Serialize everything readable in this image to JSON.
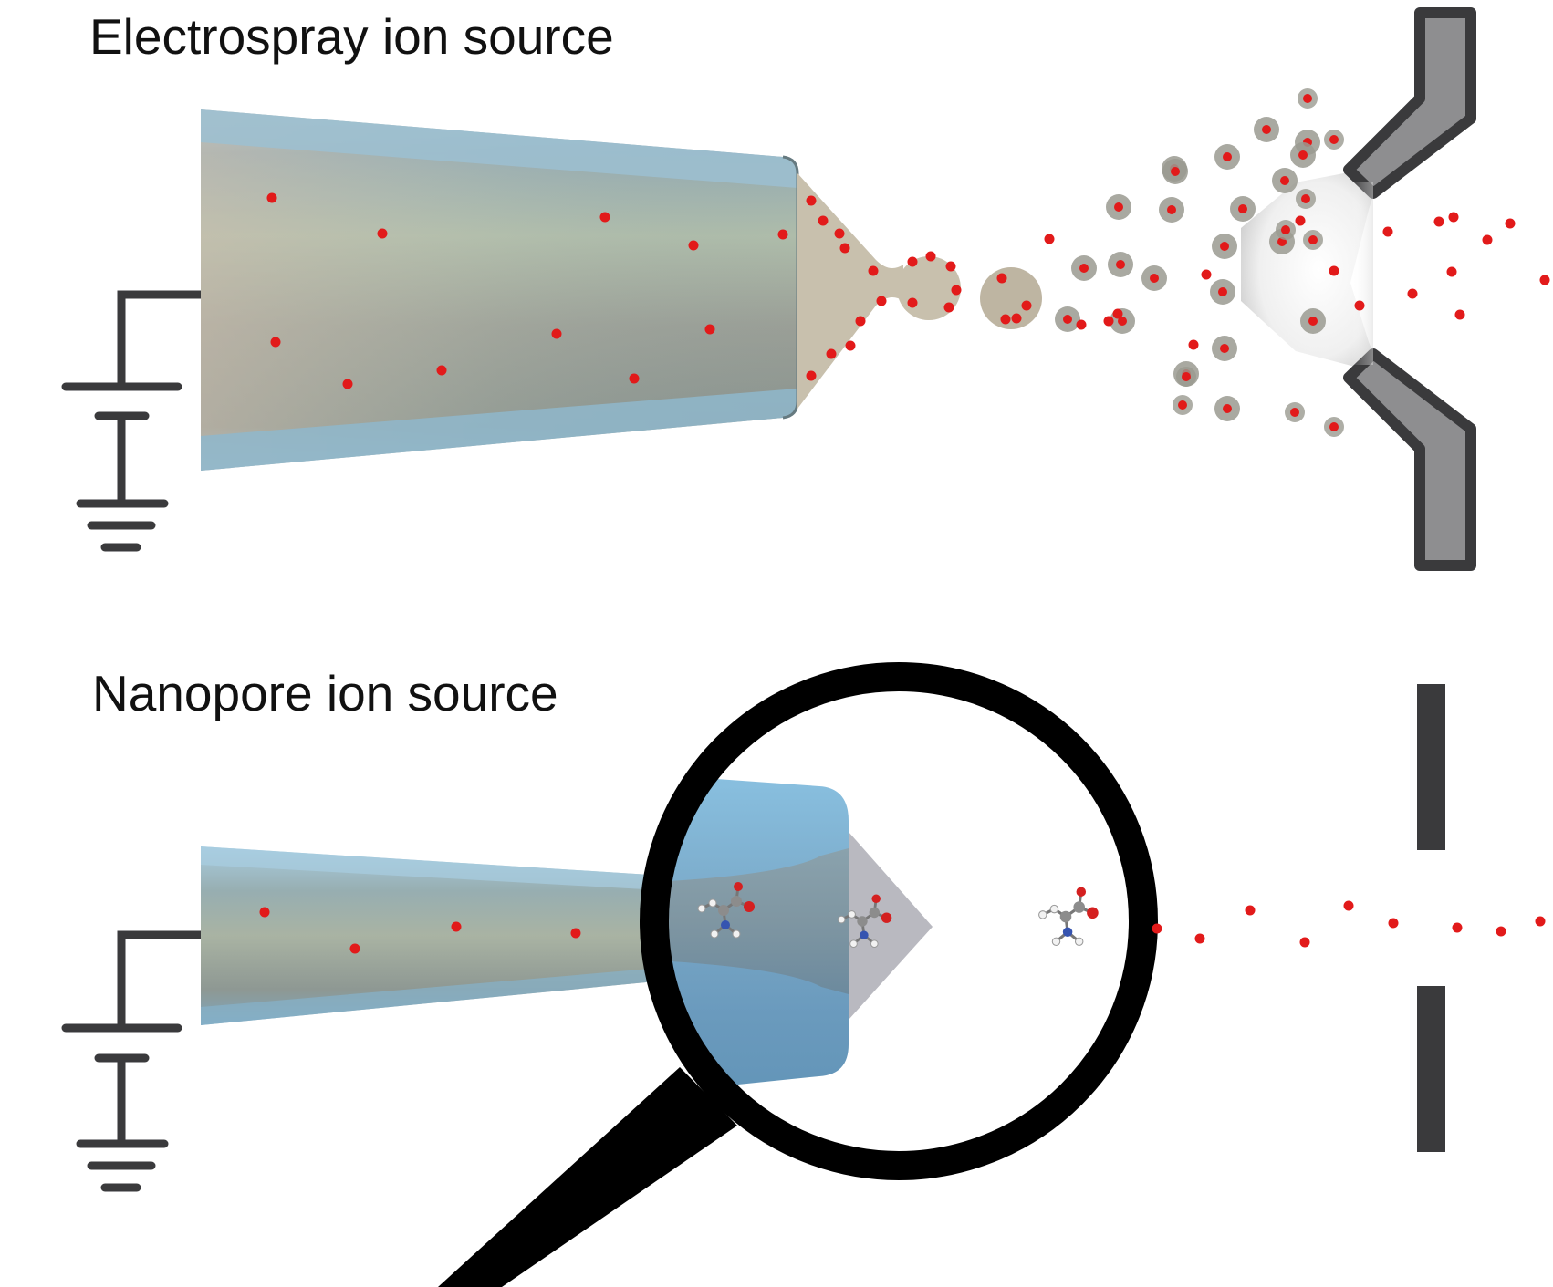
{
  "panels": {
    "electrospray": {
      "title": "Electrospray ion source"
    },
    "nanopore": {
      "title": "Nanopore ion source"
    }
  },
  "colors": {
    "ion": "#e21a1a",
    "capillary_glass": "#8fb8cc",
    "capillary_core": "#9aa39c",
    "liquid_cone": "#c8c0ad",
    "droplet": "#9a9a90",
    "inlet_outline": "#3a3a3c",
    "inlet_fill": "#8e8e90",
    "magnifier": "#000000",
    "wire": "#3a3a3c"
  },
  "icons": [
    "ground-symbol",
    "battery-symbol",
    "magnifying-glass-icon",
    "molecule-icon"
  ]
}
